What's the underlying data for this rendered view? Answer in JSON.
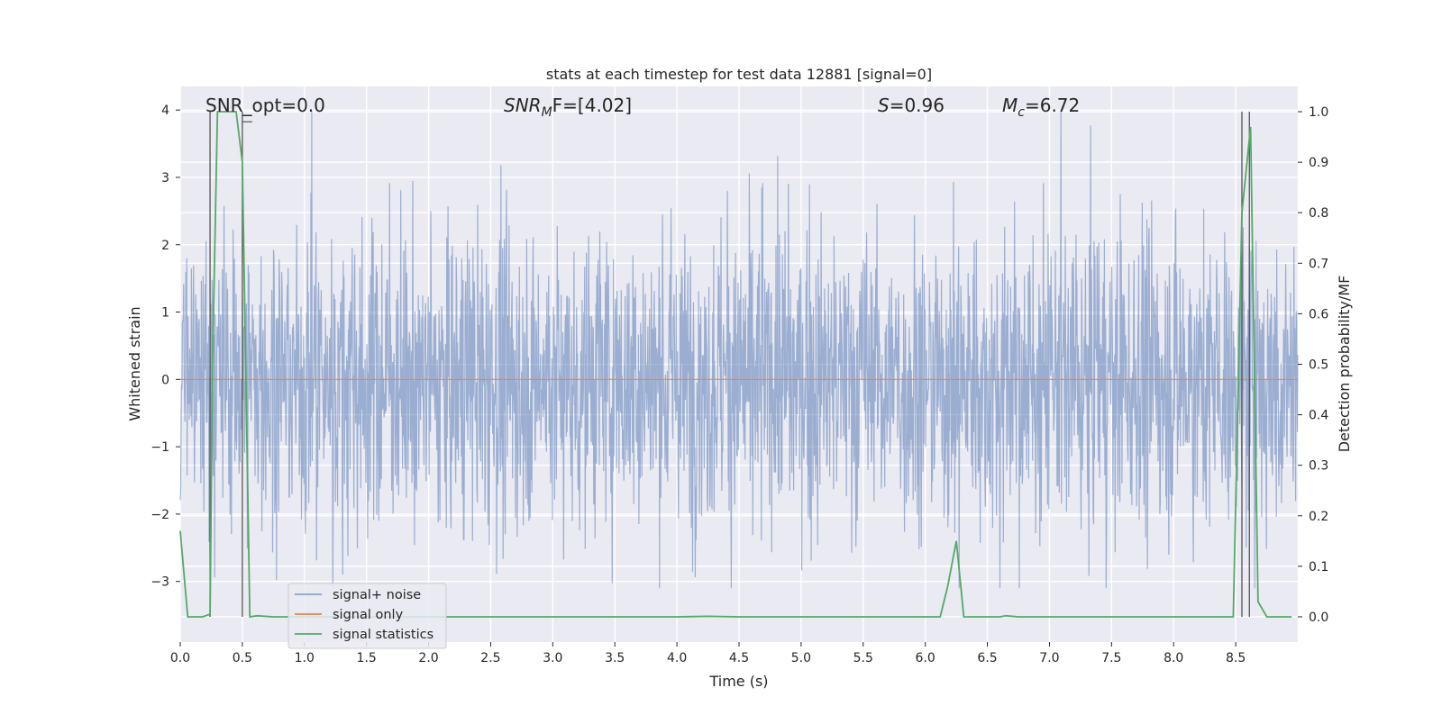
{
  "chart_data": {
    "type": "line",
    "title": "stats at each timestep for test data 12881 [signal=0]",
    "xlabel": "Time (s)",
    "ylabel_left": "Whitened strain",
    "ylabel_right": "Detection probability/MF",
    "xlim": [
      0.0,
      9.0
    ],
    "ylim_left": [
      -3.9,
      4.35
    ],
    "ylim_right": [
      -0.05,
      1.05
    ],
    "x_ticks": [
      "0.0",
      "0.5",
      "1.0",
      "1.5",
      "2.0",
      "2.5",
      "3.0",
      "3.5",
      "4.0",
      "4.5",
      "5.0",
      "5.5",
      "6.0",
      "6.5",
      "7.0",
      "7.5",
      "8.0",
      "8.5"
    ],
    "y_ticks_left": [
      "−3",
      "−2",
      "−1",
      "0",
      "1",
      "2",
      "3",
      "4"
    ],
    "y_ticks_right": [
      "0.0",
      "0.1",
      "0.2",
      "0.3",
      "0.4",
      "0.5",
      "0.6",
      "0.7",
      "0.8",
      "0.9",
      "1.0"
    ],
    "grid": true,
    "legend_position": "lower-left",
    "annotations": {
      "snr_opt": "SNR_opt=0.0",
      "snr_mf_base": "SNR",
      "snr_mf_sub": "M",
      "snr_mf_rest": "F=[4.02]",
      "s_sym": "S",
      "s_val": "=0.96",
      "mc_base": "M",
      "mc_sub": "c",
      "mc_val": "=6.72"
    },
    "series": [
      {
        "name": "signal+ noise",
        "color": "#4c72b0",
        "axis": "left",
        "description_range": [
          -3.1,
          4.0
        ],
        "typical_amplitude": 1.3
      },
      {
        "name": "signal only",
        "color": "#dd8452",
        "axis": "left",
        "x": [
          0.0,
          9.0
        ],
        "y": [
          0.0,
          0.0
        ]
      },
      {
        "name": "signal statistics",
        "color": "#55a868",
        "axis": "right",
        "x": [
          0.0,
          0.06,
          0.18,
          0.24,
          0.26,
          0.3,
          0.45,
          0.5,
          0.56,
          0.62,
          0.75,
          1.0,
          4.0,
          4.25,
          4.5,
          6.12,
          6.18,
          6.25,
          6.31,
          6.6,
          6.65,
          6.75,
          8.48,
          8.55,
          8.62,
          8.68,
          8.75,
          8.95
        ],
        "y": [
          0.17,
          0.0,
          0.0,
          0.005,
          0.5,
          1.0,
          1.0,
          0.9,
          0.0,
          0.002,
          0.0,
          0.0,
          0.0,
          0.001,
          0.0,
          0.0,
          0.06,
          0.15,
          0.0,
          0.0,
          0.002,
          0.0,
          0.0,
          0.8,
          0.97,
          0.03,
          0.0,
          0.0
        ]
      }
    ],
    "vertical_markers": {
      "color": "#555555",
      "x": [
        0.24,
        0.5,
        8.55,
        8.61
      ],
      "y_top": 1.0,
      "y_bottom": 0.0
    }
  }
}
